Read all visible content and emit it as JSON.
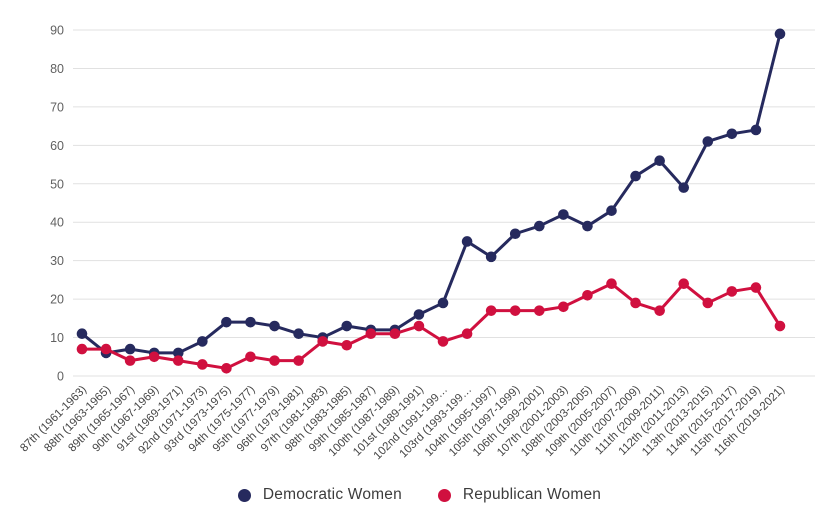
{
  "chart_data": {
    "type": "line",
    "title": "",
    "xlabel": "",
    "ylabel": "",
    "categories": [
      "87th (1961-1963)",
      "88th (1963-1965)",
      "89th (1965-1967)",
      "90th (1967-1969)",
      "91st (1969-1971)",
      "92nd (1971-1973)",
      "93rd (1973-1975)",
      "94th (1975-1977)",
      "95th (1977-1979)",
      "96th (1979-1981)",
      "97th (1981-1983)",
      "98th (1983-1985)",
      "99th (1985-1987)",
      "100th (1987-1989)",
      "101st (1989-1991)",
      "102nd (1991-199…",
      "103rd (1993-199…",
      "104th (1995-1997)",
      "105th (1997-1999)",
      "106th (1999-2001)",
      "107th (2001-2003)",
      "108th (2003-2005)",
      "109th (2005-2007)",
      "110th (2007-2009)",
      "111th (2009-2011)",
      "112th (2011-2013)",
      "113th (2013-2015)",
      "114th (2015-2017)",
      "115th (2017-2019)",
      "116th (2019-2021)"
    ],
    "series": [
      {
        "name": "Democratic Women",
        "color": "#262a5e",
        "values": [
          11,
          6,
          7,
          6,
          6,
          9,
          14,
          14,
          13,
          11,
          10,
          13,
          12,
          12,
          16,
          19,
          35,
          31,
          37,
          39,
          42,
          39,
          43,
          52,
          56,
          49,
          61,
          63,
          64,
          89
        ]
      },
      {
        "name": "Republican Women",
        "color": "#d0103f",
        "values": [
          7,
          7,
          4,
          5,
          4,
          3,
          2,
          5,
          4,
          4,
          9,
          8,
          11,
          11,
          13,
          9,
          11,
          17,
          17,
          17,
          18,
          21,
          24,
          19,
          17,
          24,
          19,
          22,
          23,
          13
        ]
      }
    ],
    "ylim": [
      0,
      90
    ],
    "yticks": [
      0,
      10,
      20,
      30,
      40,
      50,
      60,
      70,
      80,
      90
    ],
    "grid": true,
    "legend_position": "bottom"
  },
  "style": {
    "gridline_color": "#e1e1e1",
    "ytick_color": "#616161",
    "xtick_color": "#454545",
    "background": "#ffffff"
  }
}
